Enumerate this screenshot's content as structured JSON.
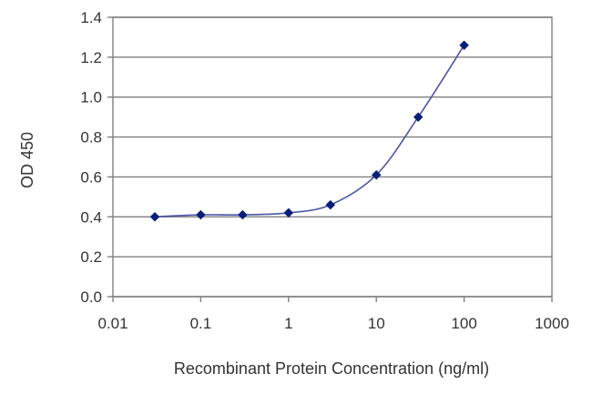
{
  "chart_data": {
    "type": "scatter",
    "title": "",
    "xlabel": "Recombinant Protein Concentration (ng/ml)",
    "ylabel": "OD 450",
    "x_scale": "log",
    "xlim": [
      0.01,
      1000
    ],
    "ylim": [
      0.0,
      1.4
    ],
    "x_ticks": [
      0.01,
      0.1,
      1,
      10,
      100,
      1000
    ],
    "x_tick_labels": [
      "0.01",
      "0.1",
      "1",
      "10",
      "100",
      "1000"
    ],
    "y_ticks": [
      0.0,
      0.2,
      0.4,
      0.6,
      0.8,
      1.0,
      1.2,
      1.4
    ],
    "y_tick_labels": [
      "0.0",
      "0.2",
      "0.4",
      "0.6",
      "0.8",
      "1.0",
      "1.2",
      "1.4"
    ],
    "grid": "horizontal",
    "legend": "none",
    "series": [
      {
        "x": [
          0.03,
          0.1,
          0.3,
          1,
          3,
          10,
          30,
          100
        ],
        "y": [
          0.4,
          0.41,
          0.41,
          0.42,
          0.46,
          0.61,
          0.9,
          1.26
        ],
        "marker": "diamond",
        "fit_curve": true
      }
    ],
    "colors": {
      "marker": "#0a1f7a",
      "curve": "#4a55a8",
      "grid": "#7f7f7f",
      "axis": "#7f7f7f",
      "text": "#333333"
    }
  }
}
